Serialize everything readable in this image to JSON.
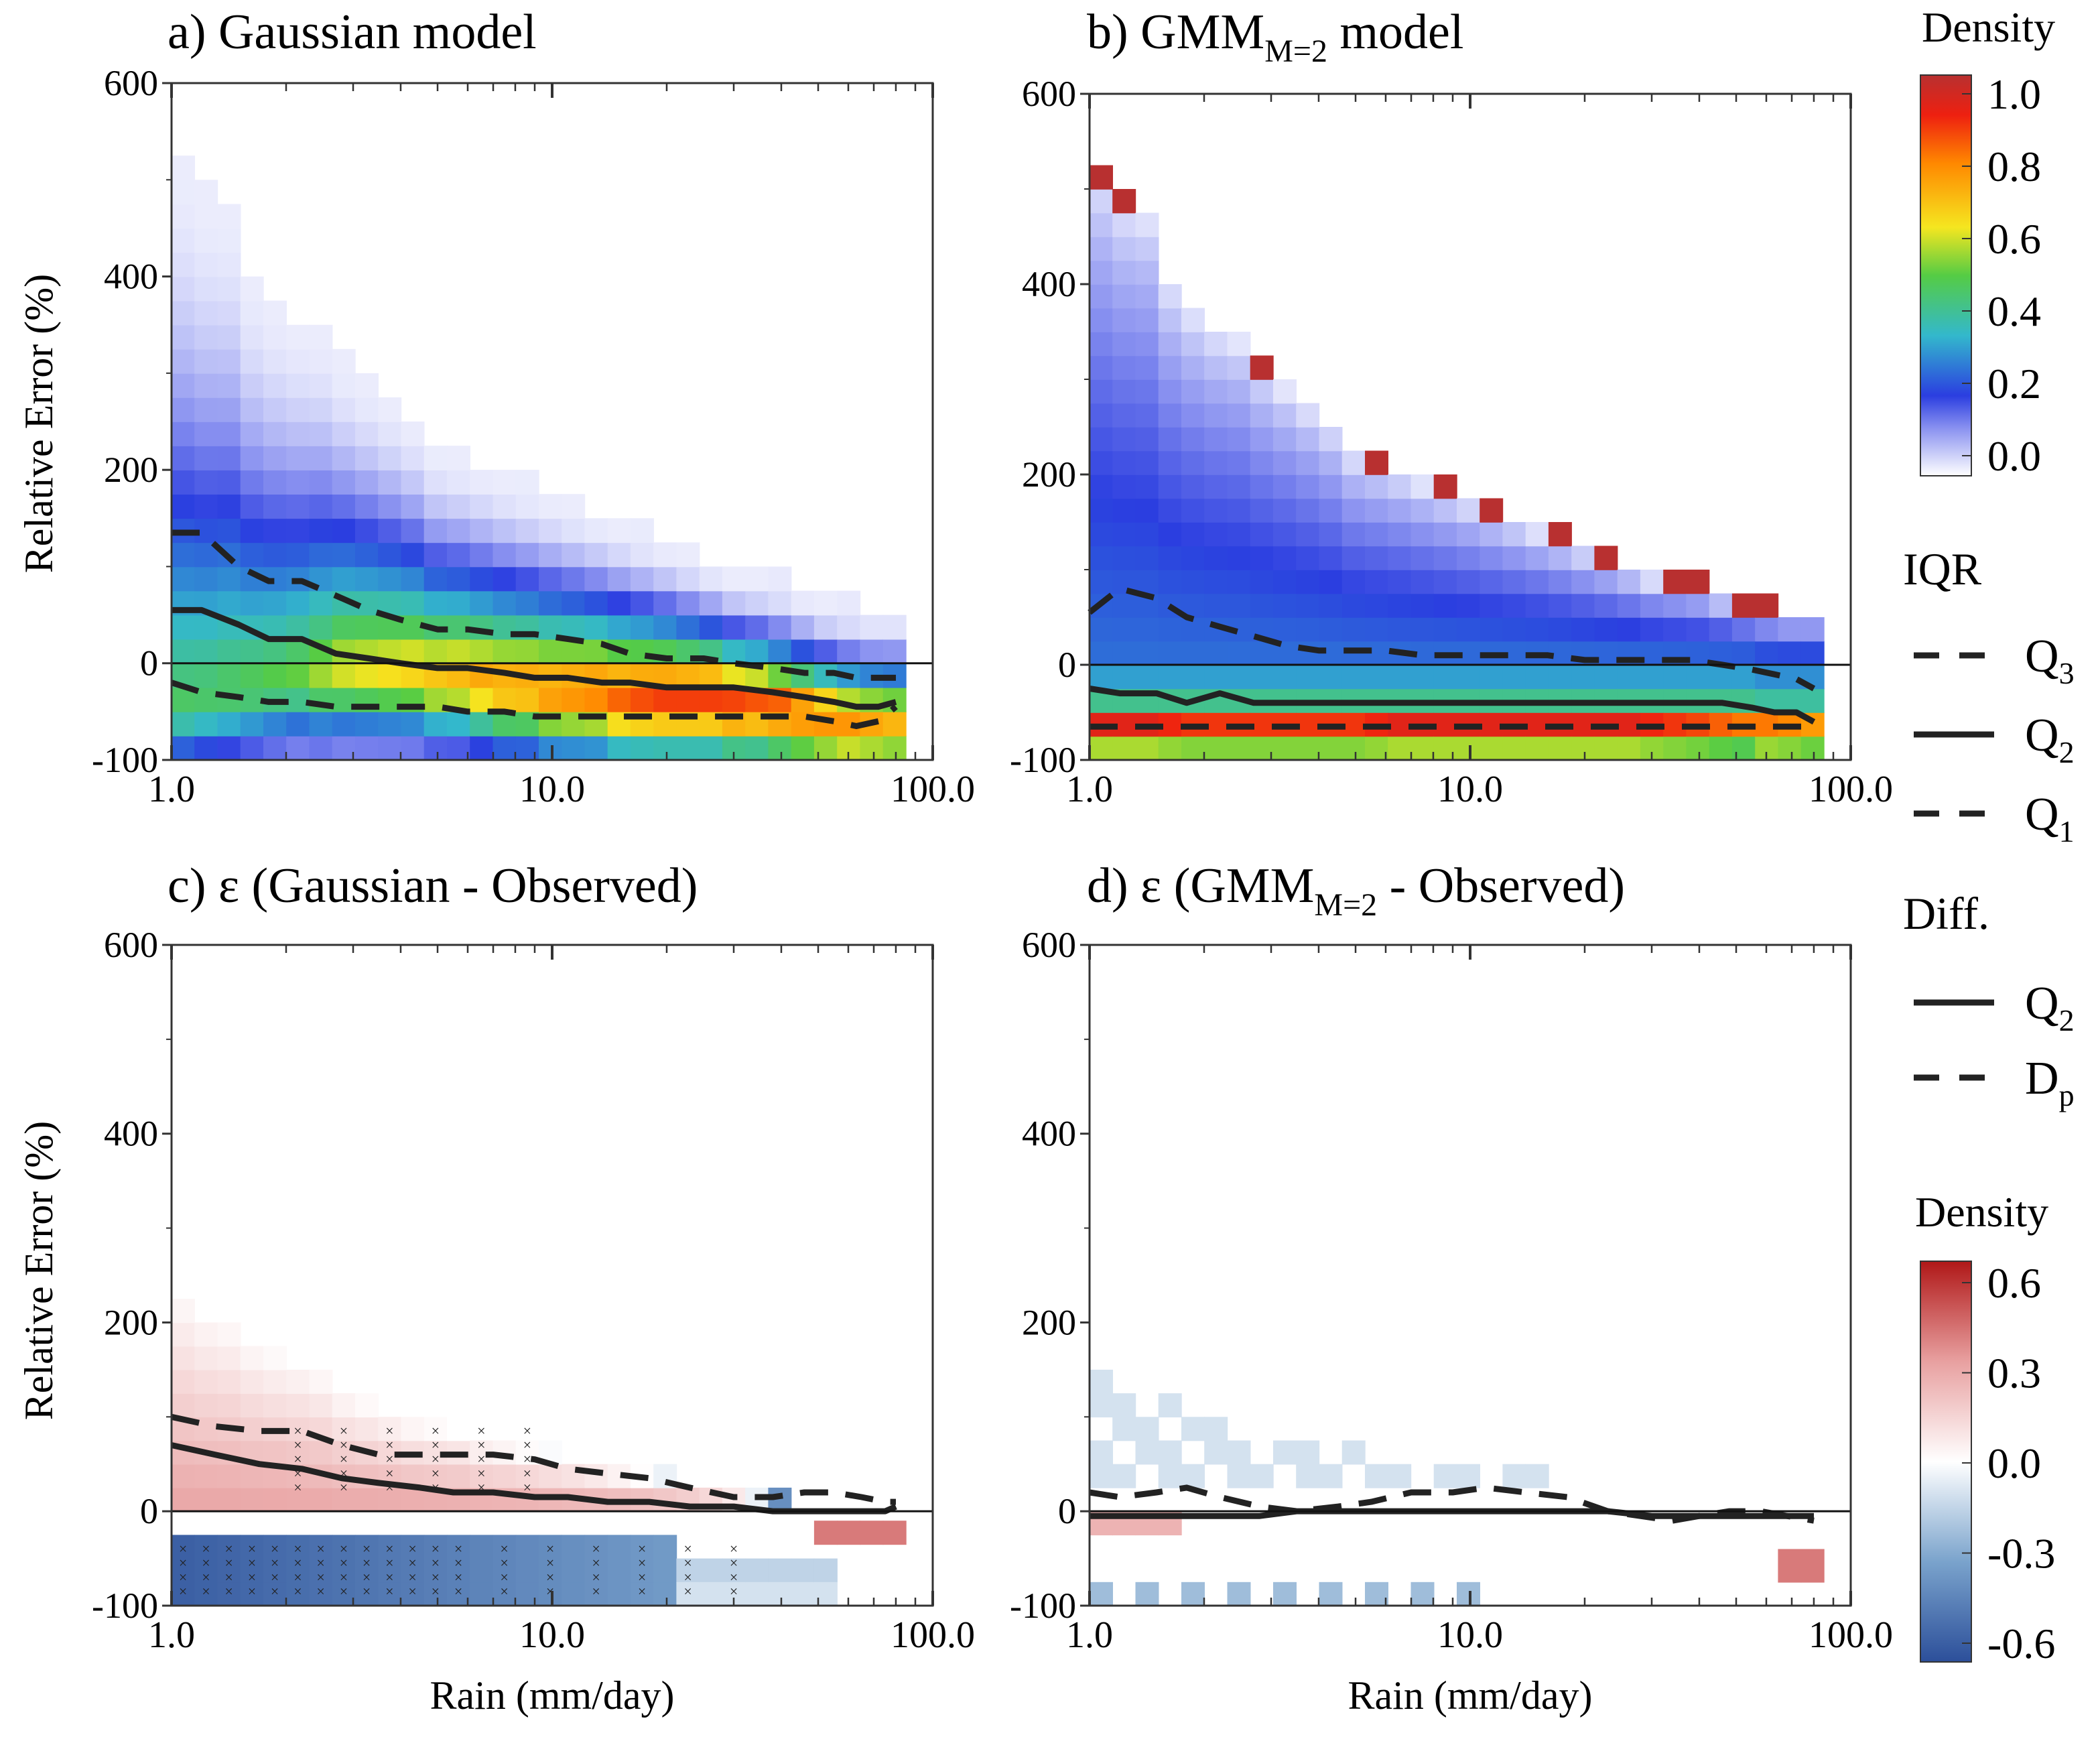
{
  "panels": [
    {
      "id": "a",
      "title_pre": "a) Gaussian model",
      "title_sub": "",
      "title_post": ""
    },
    {
      "id": "b",
      "title_pre": "b) GMM",
      "title_sub": "M=2",
      "title_post": " model"
    },
    {
      "id": "c",
      "title_pre": "c) ε (Gaussian - Observed)",
      "title_sub": "",
      "title_post": ""
    },
    {
      "id": "d",
      "title_pre": "d) ε (GMM",
      "title_sub": "M=2",
      "title_post": " - Observed)"
    }
  ],
  "axes": {
    "ylabel": "Relative Error (%)",
    "xlabel": "Rain (mm/day)",
    "yticks": [
      "-100",
      "0",
      "200",
      "400",
      "600"
    ],
    "xticks": [
      "1.0",
      "10.0",
      "100.0"
    ]
  },
  "legend": {
    "density_title_top": "Density",
    "density_ticks_top": [
      "1.0",
      "0.8",
      "0.6",
      "0.4",
      "0.2",
      "0.0"
    ],
    "iqr_title": "IQR",
    "iqr_items": [
      {
        "style": "dashed",
        "base": "Q",
        "sub": "3"
      },
      {
        "style": "solid",
        "base": "Q",
        "sub": "2"
      },
      {
        "style": "dashed",
        "base": "Q",
        "sub": "1"
      }
    ],
    "diff_title": "Diff.",
    "diff_items": [
      {
        "style": "solid",
        "base": "Q",
        "sub": "2"
      },
      {
        "style": "dashed",
        "base": "D",
        "sub": "p"
      }
    ],
    "density_title_bottom": "Density",
    "density_ticks_bottom": [
      "0.6",
      "0.3",
      "0.0",
      "-0.3",
      "-0.6"
    ]
  },
  "colors": {
    "density_scale": [
      "#ffffff",
      "#2b3ee0",
      "#33b8cc",
      "#55cc44",
      "#f5e620",
      "#ff8800",
      "#ee2010",
      "#b83030"
    ],
    "diverging_scale": [
      "#2c4f9a",
      "#7aa3cc",
      "#ffffff",
      "#e8a0a0",
      "#b01818"
    ]
  },
  "chart_data": [
    {
      "panel": "a",
      "type": "heatmap",
      "x_scale": "log",
      "xlim": [
        1,
        100
      ],
      "ylim": [
        -100,
        600
      ],
      "density_peak_y": [
        -35,
        -30,
        -25,
        -20,
        -15,
        -10,
        -10,
        -5,
        -5,
        -5,
        -5,
        -10,
        -10,
        -15,
        -20,
        -20,
        -25,
        -25,
        -25,
        -30,
        -30,
        -30,
        -30,
        -30,
        -35,
        -35,
        -40,
        -45,
        -50,
        -55,
        -55,
        -55
      ],
      "peak_density": [
        0.45,
        0.45,
        0.46,
        0.47,
        0.48,
        0.5,
        0.55,
        0.6,
        0.62,
        0.64,
        0.66,
        0.68,
        0.7,
        0.72,
        0.74,
        0.75,
        0.78,
        0.8,
        0.82,
        0.85,
        0.88,
        0.9,
        0.9,
        0.9,
        0.88,
        0.86,
        0.84,
        0.82,
        0.8,
        0.78,
        0.75,
        0.72
      ],
      "upper_extent": [
        510,
        480,
        470,
        400,
        370,
        350,
        340,
        310,
        290,
        270,
        250,
        220,
        210,
        200,
        190,
        180,
        170,
        160,
        150,
        140,
        130,
        120,
        110,
        100,
        90,
        85,
        80,
        70,
        60,
        55,
        50,
        50
      ],
      "lines": {
        "Q3": {
          "x": [
            1.0,
            1.2,
            1.5,
            1.8,
            2.2,
            2.7,
            3.3,
            4.0,
            5.0,
            6.0,
            7.5,
            9.0,
            11.0,
            13.5,
            16.0,
            20.0,
            25.0,
            30.0,
            38.0,
            46.0,
            55.0,
            63.0,
            72.0,
            80.0
          ],
          "y": [
            135,
            135,
            100,
            85,
            85,
            70,
            55,
            45,
            35,
            35,
            30,
            30,
            25,
            20,
            10,
            5,
            5,
            0,
            -5,
            -10,
            -10,
            -15,
            -15,
            -15
          ]
        },
        "Q2": {
          "x": [
            1.0,
            1.2,
            1.5,
            1.8,
            2.2,
            2.7,
            3.3,
            4.0,
            5.0,
            6.0,
            7.5,
            9.0,
            11.0,
            13.5,
            16.0,
            20.0,
            25.0,
            30.0,
            38.0,
            46.0,
            55.0,
            63.0,
            72.0,
            80.0
          ],
          "y": [
            55,
            55,
            40,
            25,
            25,
            10,
            5,
            0,
            -5,
            -5,
            -10,
            -15,
            -15,
            -20,
            -20,
            -25,
            -25,
            -25,
            -30,
            -35,
            -40,
            -45,
            -45,
            -40
          ]
        },
        "Q1": {
          "x": [
            1.0,
            1.2,
            1.5,
            1.8,
            2.2,
            2.7,
            3.3,
            4.0,
            5.0,
            6.0,
            7.5,
            9.0,
            11.0,
            13.5,
            16.0,
            20.0,
            25.0,
            30.0,
            38.0,
            46.0,
            55.0,
            63.0,
            72.0,
            80.0
          ],
          "y": [
            -20,
            -30,
            -35,
            -40,
            -40,
            -45,
            -45,
            -45,
            -45,
            -50,
            -50,
            -55,
            -55,
            -55,
            -55,
            -55,
            -55,
            -55,
            -55,
            -55,
            -60,
            -65,
            -60,
            -45
          ]
        }
      }
    },
    {
      "panel": "b",
      "type": "heatmap",
      "x_scale": "log",
      "xlim": [
        1,
        100
      ],
      "ylim": [
        -100,
        600
      ],
      "density_peak_y": [
        -55,
        -55,
        -55,
        -55,
        -55,
        -55,
        -55,
        -55,
        -55,
        -55,
        -55,
        -55,
        -55,
        -55,
        -55,
        -55,
        -55,
        -55,
        -55,
        -55,
        -55,
        -55,
        -55,
        -55,
        -55,
        -55,
        -55,
        -55,
        -55,
        -60,
        -60,
        -60
      ],
      "peak_density": [
        0.95,
        0.95,
        0.95,
        0.92,
        0.9,
        0.9,
        0.9,
        0.9,
        0.9,
        0.9,
        0.9,
        0.9,
        0.92,
        0.95,
        0.95,
        0.95,
        0.95,
        0.95,
        0.95,
        0.95,
        0.95,
        0.95,
        0.95,
        0.95,
        0.92,
        0.9,
        0.88,
        0.85,
        0.82,
        0.8,
        0.78,
        0.75
      ],
      "upper_extent": [
        510,
        480,
        470,
        400,
        370,
        350,
        340,
        310,
        290,
        270,
        250,
        220,
        210,
        200,
        190,
        180,
        170,
        160,
        150,
        140,
        130,
        120,
        110,
        100,
        90,
        85,
        80,
        70,
        60,
        55,
        50,
        50
      ],
      "lines": {
        "Q3": {
          "x": [
            1.0,
            1.2,
            1.5,
            1.8,
            2.2,
            2.7,
            3.3,
            4.0,
            5.0,
            6.0,
            7.5,
            9.0,
            11.0,
            13.5,
            16.0,
            20.0,
            25.0,
            30.0,
            38.0,
            46.0,
            55.0,
            63.0,
            72.0,
            80.0
          ],
          "y": [
            55,
            80,
            70,
            50,
            40,
            30,
            20,
            15,
            15,
            15,
            10,
            10,
            10,
            10,
            10,
            5,
            5,
            5,
            5,
            0,
            -5,
            -10,
            -15,
            -25
          ]
        },
        "Q2": {
          "x": [
            1.0,
            1.2,
            1.5,
            1.8,
            2.2,
            2.7,
            3.3,
            4.0,
            5.0,
            6.0,
            7.5,
            9.0,
            11.0,
            13.5,
            16.0,
            20.0,
            25.0,
            30.0,
            38.0,
            46.0,
            55.0,
            63.0,
            72.0,
            80.0
          ],
          "y": [
            -25,
            -30,
            -30,
            -40,
            -30,
            -40,
            -40,
            -40,
            -40,
            -40,
            -40,
            -40,
            -40,
            -40,
            -40,
            -40,
            -40,
            -40,
            -40,
            -40,
            -45,
            -50,
            -50,
            -60
          ]
        },
        "Q1": {
          "x": [
            1.0,
            1.2,
            1.5,
            1.8,
            2.2,
            2.7,
            3.3,
            4.0,
            5.0,
            6.0,
            7.5,
            9.0,
            11.0,
            13.5,
            16.0,
            20.0,
            25.0,
            30.0,
            38.0,
            46.0,
            55.0,
            63.0,
            72.0,
            80.0
          ],
          "y": [
            -65,
            -65,
            -65,
            -65,
            -65,
            -65,
            -65,
            -65,
            -65,
            -65,
            -65,
            -65,
            -65,
            -65,
            -65,
            -65,
            -65,
            -65,
            -65,
            -65,
            -65,
            -65,
            -65,
            -65
          ]
        }
      }
    },
    {
      "panel": "c",
      "type": "heatmap",
      "x_scale": "log",
      "xlim": [
        1,
        100
      ],
      "ylim": [
        -100,
        600
      ],
      "positive_upper": [
        220,
        200,
        190,
        170,
        160,
        150,
        140,
        120,
        110,
        100,
        90,
        85,
        80,
        70,
        65,
        60,
        55,
        50,
        45,
        40,
        35,
        30,
        25,
        20,
        15,
        10,
        5,
        0,
        0,
        0,
        0,
        0
      ],
      "lines": {
        "Q2": {
          "x": [
            1.0,
            1.3,
            1.7,
            2.2,
            2.8,
            3.5,
            4.5,
            5.5,
            7.0,
            9.0,
            11.0,
            14.0,
            18.0,
            23.0,
            30.0,
            38.0,
            46.0,
            55.0,
            65.0,
            75.0,
            80.0
          ],
          "y": [
            70,
            60,
            50,
            45,
            35,
            30,
            25,
            20,
            20,
            15,
            15,
            10,
            10,
            5,
            5,
            0,
            0,
            0,
            0,
            0,
            5
          ]
        },
        "Dp": {
          "x": [
            1.0,
            1.3,
            1.7,
            2.2,
            2.8,
            3.5,
            4.5,
            5.5,
            7.0,
            9.0,
            11.0,
            14.0,
            18.0,
            23.0,
            30.0,
            38.0,
            46.0,
            55.0,
            65.0,
            75.0,
            80.0
          ],
          "y": [
            100,
            90,
            85,
            85,
            70,
            60,
            60,
            60,
            60,
            55,
            45,
            40,
            35,
            25,
            15,
            15,
            20,
            20,
            15,
            10,
            10
          ]
        }
      }
    },
    {
      "panel": "d",
      "type": "heatmap",
      "x_scale": "log",
      "xlim": [
        1,
        100
      ],
      "ylim": [
        -100,
        600
      ],
      "lines": {
        "Q2": {
          "x": [
            1.0,
            1.3,
            1.7,
            2.2,
            2.8,
            3.5,
            4.5,
            5.5,
            7.0,
            9.0,
            11.0,
            14.0,
            18.0,
            23.0,
            30.0,
            38.0,
            46.0,
            55.0,
            65.0,
            75.0,
            80.0
          ],
          "y": [
            -5,
            -5,
            -5,
            -5,
            -5,
            0,
            0,
            0,
            0,
            0,
            0,
            0,
            0,
            0,
            -5,
            -5,
            -5,
            -5,
            -5,
            -5,
            -5
          ]
        },
        "Dp": {
          "x": [
            1.0,
            1.2,
            1.5,
            1.8,
            2.2,
            2.8,
            3.5,
            4.5,
            5.5,
            7.0,
            9.0,
            11.0,
            14.0,
            18.0,
            23.0,
            28.0,
            34.0,
            40.0,
            48.0,
            58.0,
            68.0,
            80.0
          ],
          "y": [
            20,
            15,
            20,
            25,
            15,
            5,
            0,
            5,
            10,
            20,
            20,
            25,
            20,
            15,
            0,
            -5,
            -10,
            -5,
            0,
            0,
            -5,
            -10
          ]
        }
      }
    }
  ]
}
